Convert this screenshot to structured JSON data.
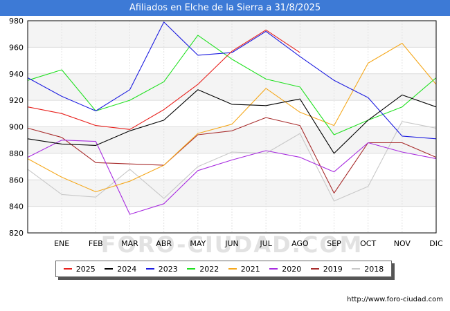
{
  "chart_data": {
    "type": "line",
    "title": "Afiliados en Elche de la Sierra a 31/8/2025",
    "categories": [
      "",
      "ENE",
      "FEB",
      "MAR",
      "ABR",
      "MAY",
      "JUN",
      "JUL",
      "AGO",
      "SEP",
      "OCT",
      "NOV",
      "DIC"
    ],
    "ylim": [
      820,
      980
    ],
    "yticks": [
      820,
      840,
      860,
      880,
      900,
      920,
      940,
      960,
      980
    ],
    "series": [
      {
        "name": "2025",
        "color": "#e8201c",
        "values": [
          915,
          910,
          901,
          898,
          913,
          932,
          957,
          973,
          956,
          null,
          null,
          null,
          null
        ]
      },
      {
        "name": "2024",
        "color": "#000000",
        "values": [
          891,
          887,
          886,
          897,
          905,
          928,
          917,
          916,
          921,
          880,
          905,
          924,
          915
        ]
      },
      {
        "name": "2023",
        "color": "#1c1ce0",
        "values": [
          937,
          923,
          912,
          928,
          979,
          954,
          956,
          972,
          953,
          935,
          922,
          893,
          891
        ]
      },
      {
        "name": "2022",
        "color": "#1fe01f",
        "values": [
          935,
          943,
          912,
          920,
          934,
          969,
          951,
          936,
          930,
          894,
          905,
          915,
          937
        ]
      },
      {
        "name": "2021",
        "color": "#f5a81c",
        "values": [
          876,
          862,
          851,
          859,
          871,
          895,
          902,
          929,
          911,
          901,
          948,
          963,
          932
        ]
      },
      {
        "name": "2020",
        "color": "#a82ce0",
        "values": [
          877,
          890,
          889,
          834,
          842,
          867,
          875,
          882,
          877,
          866,
          888,
          881,
          876
        ]
      },
      {
        "name": "2019",
        "color": "#a82c2c",
        "values": [
          899,
          892,
          873,
          872,
          871,
          894,
          897,
          907,
          901,
          850,
          888,
          888,
          877
        ]
      },
      {
        "name": "2018",
        "color": "#c8c8c8",
        "values": [
          868,
          849,
          847,
          868,
          846,
          870,
          881,
          880,
          895,
          844,
          855,
          904,
          899
        ]
      }
    ],
    "watermark": "FORO-CIUDAD.COM"
  },
  "footer": {
    "url": "http://www.foro-ciudad.com"
  }
}
